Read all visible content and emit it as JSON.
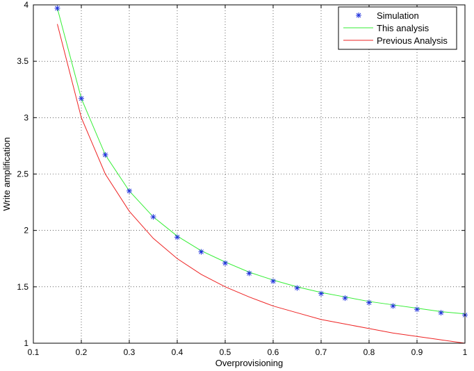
{
  "chart_data": {
    "type": "line",
    "xlabel": "Overprovisioning",
    "ylabel": "Write amplification",
    "xlim": [
      0.1,
      1
    ],
    "ylim": [
      1,
      4
    ],
    "xticks": [
      "0.1",
      "0.2",
      "0.3",
      "0.4",
      "0.5",
      "0.6",
      "0.7",
      "0.8",
      "0.9",
      "1"
    ],
    "yticks": [
      "1",
      "1.5",
      "2",
      "2.5",
      "3",
      "3.5",
      "4"
    ],
    "grid": true,
    "legend_position": "top-right",
    "series": [
      {
        "name": "Simulation",
        "style": "markers",
        "marker": "asterisk",
        "color": "#2233dd",
        "x": [
          0.15,
          0.2,
          0.25,
          0.3,
          0.35,
          0.4,
          0.45,
          0.5,
          0.55,
          0.6,
          0.65,
          0.7,
          0.75,
          0.8,
          0.85,
          0.9,
          0.95,
          1.0
        ],
        "y": [
          3.97,
          3.17,
          2.67,
          2.35,
          2.12,
          1.94,
          1.81,
          1.71,
          1.62,
          1.55,
          1.49,
          1.44,
          1.4,
          1.36,
          1.33,
          1.3,
          1.27,
          1.25
        ]
      },
      {
        "name": "This analysis",
        "style": "line",
        "color": "#33ee33",
        "x": [
          0.15,
          0.2,
          0.25,
          0.3,
          0.35,
          0.4,
          0.45,
          0.5,
          0.55,
          0.6,
          0.65,
          0.7,
          0.75,
          0.8,
          0.85,
          0.9,
          0.95,
          1.0
        ],
        "y": [
          3.97,
          3.17,
          2.67,
          2.35,
          2.12,
          1.95,
          1.82,
          1.72,
          1.63,
          1.56,
          1.5,
          1.45,
          1.41,
          1.37,
          1.34,
          1.31,
          1.28,
          1.26
        ]
      },
      {
        "name": "Previous Analysis",
        "style": "line",
        "color": "#ee2222",
        "x": [
          0.15,
          0.2,
          0.25,
          0.3,
          0.35,
          0.4,
          0.45,
          0.5,
          0.55,
          0.6,
          0.65,
          0.7,
          0.75,
          0.8,
          0.85,
          0.9,
          0.95,
          1.0
        ],
        "y": [
          3.83,
          3.0,
          2.5,
          2.17,
          1.93,
          1.75,
          1.61,
          1.5,
          1.41,
          1.33,
          1.27,
          1.21,
          1.17,
          1.13,
          1.09,
          1.06,
          1.03,
          1.0
        ]
      }
    ]
  }
}
